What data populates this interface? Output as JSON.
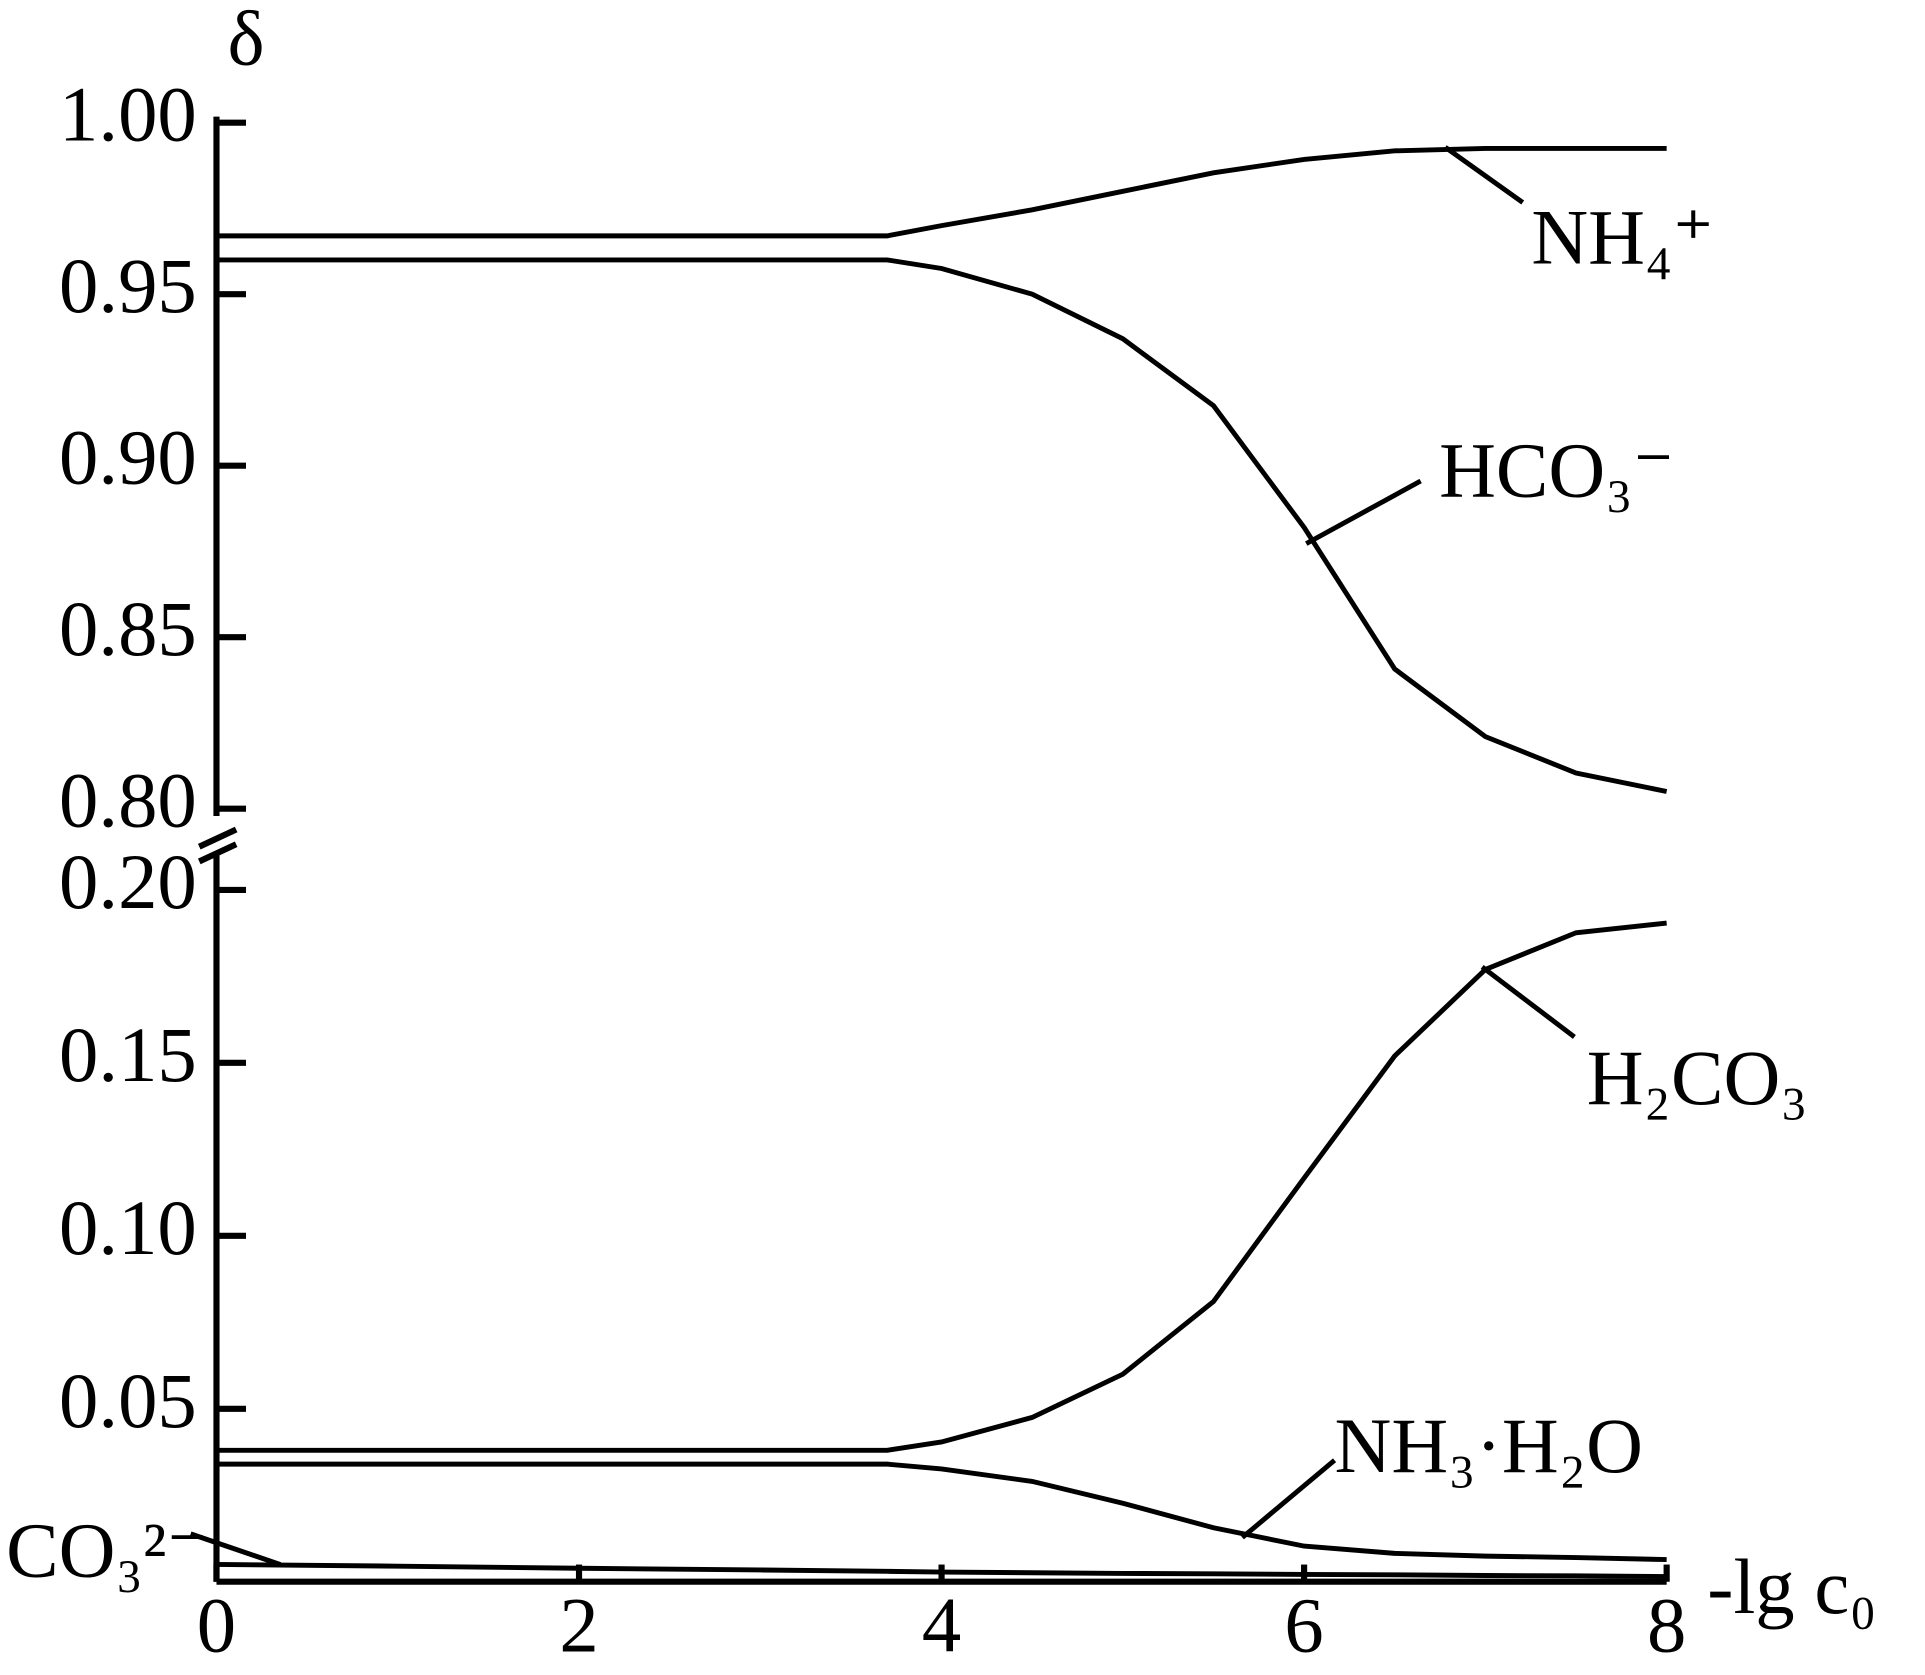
{
  "chart_data": [
    {
      "type": "line",
      "y_label": "δ",
      "ylim": [
        0.8,
        1.0
      ],
      "yticks": [
        {
          "value": 0.8,
          "label": "0.80"
        },
        {
          "value": 0.85,
          "label": "0.85"
        },
        {
          "value": 0.9,
          "label": "0.90"
        },
        {
          "value": 0.95,
          "label": "0.95"
        },
        {
          "value": 1.0,
          "label": "1.00"
        }
      ],
      "xlim": [
        0,
        8
      ],
      "x": [
        0,
        1,
        2,
        3,
        3.7,
        4,
        4.5,
        5,
        5.5,
        6,
        6.5,
        7,
        7.5,
        8
      ],
      "series": [
        {
          "name": "NH₄⁺",
          "color": "#000000",
          "values": [
            0.967,
            0.967,
            0.967,
            0.967,
            0.967,
            0.97,
            0.9746,
            0.98,
            0.9854,
            0.9893,
            0.9918,
            0.9925,
            0.9925,
            0.9925
          ]
        },
        {
          "name": "HCO₃⁻",
          "color": "#000000",
          "values": [
            0.96,
            0.96,
            0.96,
            0.96,
            0.96,
            0.9575,
            0.95,
            0.937,
            0.9175,
            0.882,
            0.8407,
            0.821,
            0.8104,
            0.805
          ]
        }
      ]
    },
    {
      "type": "line",
      "x_label": "-lg c₀",
      "ylim": [
        0,
        0.21
      ],
      "yticks": [
        {
          "value": 0.05,
          "label": "0.05"
        },
        {
          "value": 0.1,
          "label": "0.10"
        },
        {
          "value": 0.15,
          "label": "0.15"
        },
        {
          "value": 0.2,
          "label": "0.20"
        }
      ],
      "xlim": [
        0,
        8
      ],
      "xticks": [
        0,
        2,
        4,
        6,
        8
      ],
      "x": [
        0,
        1,
        2,
        3,
        3.7,
        4,
        4.5,
        5,
        5.5,
        6,
        6.5,
        7,
        7.5,
        8
      ],
      "series": [
        {
          "name": "H₂CO₃",
          "color": "#000000",
          "values": [
            0.038,
            0.038,
            0.038,
            0.038,
            0.038,
            0.0404,
            0.0475,
            0.06,
            0.081,
            0.1167,
            0.152,
            0.177,
            0.1876,
            0.1904
          ]
        },
        {
          "name": "NH₃·H₂O",
          "color": "#000000",
          "values": [
            0.034,
            0.034,
            0.034,
            0.034,
            0.034,
            0.0326,
            0.029,
            0.0227,
            0.0156,
            0.0103,
            0.0082,
            0.0074,
            0.007,
            0.0064
          ]
        },
        {
          "name": "CO₃²⁻",
          "color": "#000000",
          "values": [
            0.005,
            0.0045,
            0.0039,
            0.0034,
            0.003,
            0.0028,
            0.0026,
            0.0024,
            0.0023,
            0.0021,
            0.002,
            0.0018,
            0.0017,
            0.0015
          ]
        }
      ]
    }
  ]
}
